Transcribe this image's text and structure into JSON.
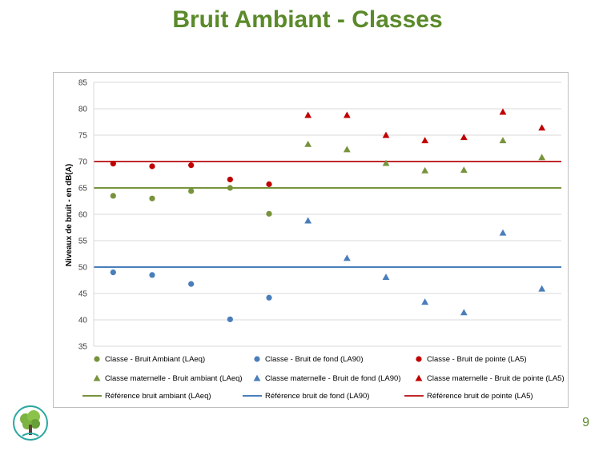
{
  "slide": {
    "title": "Bruit Ambiant - Classes",
    "page_number": "9"
  },
  "colors": {
    "title": "#5a8a2a",
    "green": "#77933c",
    "blue": "#4a7ebb",
    "red": "#c00000",
    "ref_green": "#77933c",
    "ref_blue": "#4a7ebb",
    "ref_red": "#c0292b"
  },
  "chart_data": {
    "type": "scatter",
    "title": "",
    "xlabel": "",
    "ylabel": "Niveaux de bruit - en dB(A)",
    "ylim": [
      35,
      85
    ],
    "yticks": [
      35,
      40,
      45,
      50,
      55,
      60,
      65,
      70,
      75,
      80,
      85
    ],
    "x_positions": 12,
    "grid": true,
    "legend_position": "bottom",
    "series": [
      {
        "name": "Classe - Bruit Ambiant (LAeq)",
        "marker": "circle",
        "color": "green",
        "x": [
          1,
          2,
          3,
          4,
          5
        ],
        "values": [
          63.5,
          63.0,
          64.4,
          65.0,
          60.1
        ]
      },
      {
        "name": "Classe - Bruit de fond (LA90)",
        "marker": "circle",
        "color": "blue",
        "x": [
          1,
          2,
          3,
          4,
          5
        ],
        "values": [
          49.0,
          48.5,
          46.8,
          40.1,
          44.2
        ]
      },
      {
        "name": "Classe - Bruit de pointe (LA5)",
        "marker": "circle",
        "color": "red",
        "x": [
          1,
          2,
          3,
          4,
          5
        ],
        "values": [
          69.6,
          69.1,
          69.3,
          66.6,
          65.7
        ]
      },
      {
        "name": "Classe maternelle - Bruit ambiant (LAeq)",
        "marker": "triangle",
        "color": "green",
        "x": [
          6,
          7,
          8,
          9,
          10,
          11,
          12
        ],
        "values": [
          73.3,
          72.3,
          69.7,
          68.3,
          68.4,
          74.0,
          70.8
        ]
      },
      {
        "name": "Classe maternelle - Bruit de fond (LA90)",
        "marker": "triangle",
        "color": "blue",
        "x": [
          6,
          7,
          8,
          9,
          10,
          11,
          12
        ],
        "values": [
          58.8,
          51.7,
          48.1,
          43.4,
          41.4,
          56.5,
          45.9
        ]
      },
      {
        "name": "Classe maternelle - Bruit de pointe (LA5)",
        "marker": "triangle",
        "color": "red",
        "x": [
          6,
          7,
          8,
          9,
          10,
          11,
          12
        ],
        "values": [
          78.8,
          78.8,
          75.0,
          74.0,
          74.6,
          79.4,
          76.4
        ]
      }
    ],
    "reference_lines": [
      {
        "name": "Référence bruit ambiant (LAeq)",
        "color": "ref_green",
        "value": 65
      },
      {
        "name": "Référence bruit de fond (LA90)",
        "color": "ref_blue",
        "value": 50
      },
      {
        "name": "Référence bruit de pointe (LA5)",
        "color": "ref_red",
        "value": 70
      }
    ]
  }
}
